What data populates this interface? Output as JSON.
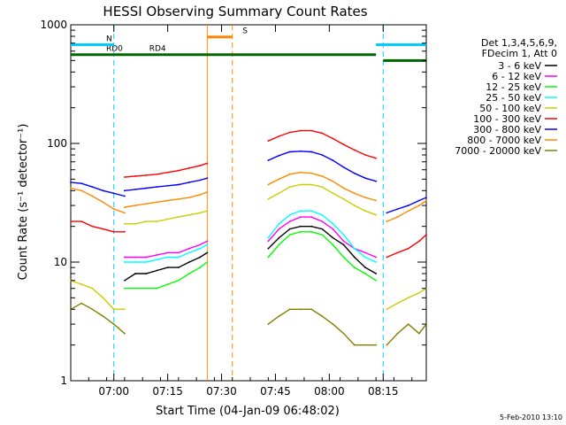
{
  "chart_data": {
    "type": "line",
    "title": "HESSI Observing Summary Count Rates",
    "xlabel": "Start Time (04-Jan-09 06:48:02)",
    "ylabel": "Count Rate (s⁻¹ detector⁻¹)",
    "y_scale": "log",
    "ylim": [
      1,
      1000
    ],
    "xlim_minutes_after_start": [
      0,
      99
    ],
    "x_ticks": [
      {
        "label": "07:00",
        "t": 12
      },
      {
        "label": "07:15",
        "t": 27
      },
      {
        "label": "07:30",
        "t": 42
      },
      {
        "label": "07:45",
        "t": 57
      },
      {
        "label": "08:00",
        "t": 72
      },
      {
        "label": "08:15",
        "t": 87
      }
    ],
    "y_ticks": [
      {
        "label": "1",
        "v": 1
      },
      {
        "label": "10",
        "v": 10
      },
      {
        "label": "100",
        "v": 100
      },
      {
        "label": "1000",
        "v": 1000
      }
    ],
    "legend_header": [
      "Det 1,3,4,5,6,9,",
      "FDecim 1, Att 0"
    ],
    "legend_placement": "right",
    "gaps": [
      [
        38,
        55
      ],
      [
        99,
        99
      ]
    ],
    "series": [
      {
        "name": "3 - 6 keV",
        "color": "#000000",
        "segments": [
          {
            "x": [
              15,
              18,
              21,
              24,
              27,
              30,
              33,
              36,
              38
            ],
            "y": [
              7,
              8,
              8,
              8.5,
              9,
              9,
              10,
              11,
              12
            ]
          },
          {
            "x": [
              55,
              58,
              61,
              64,
              67,
              70,
              73,
              76,
              79,
              82,
              85
            ],
            "y": [
              13,
              16,
              19,
              20,
              20,
              19,
              16,
              14,
              11,
              9,
              8
            ]
          }
        ]
      },
      {
        "name": "6 - 12 keV",
        "color": "#ff00ff",
        "segments": [
          {
            "x": [
              15,
              18,
              21,
              24,
              27,
              30,
              33,
              36,
              38
            ],
            "y": [
              11,
              11,
              11,
              11.5,
              12,
              12,
              13,
              14,
              15
            ]
          },
          {
            "x": [
              55,
              58,
              61,
              64,
              67,
              70,
              73,
              76,
              79,
              82,
              85
            ],
            "y": [
              15,
              19,
              22,
              24,
              24,
              22,
              19,
              15,
              13,
              12,
              11
            ]
          }
        ]
      },
      {
        "name": "12 - 25 keV",
        "color": "#00ff00",
        "segments": [
          {
            "x": [
              15,
              18,
              21,
              24,
              27,
              30,
              33,
              36,
              38
            ],
            "y": [
              6,
              6,
              6,
              6,
              6.5,
              7,
              8,
              9,
              10
            ]
          },
          {
            "x": [
              55,
              58,
              61,
              64,
              67,
              70,
              73,
              76,
              79,
              82,
              85
            ],
            "y": [
              11,
              14,
              17,
              18,
              18,
              17,
              14,
              11,
              9,
              8,
              7
            ]
          }
        ]
      },
      {
        "name": "25 - 50 keV",
        "color": "#00ffff",
        "segments": [
          {
            "x": [
              15,
              18,
              21,
              24,
              27,
              30,
              33,
              36,
              38
            ],
            "y": [
              10,
              10,
              10,
              10.5,
              11,
              11,
              12,
              13,
              14
            ]
          },
          {
            "x": [
              55,
              58,
              61,
              64,
              67,
              70,
              73,
              76,
              79,
              82,
              85
            ],
            "y": [
              16,
              21,
              25,
              27,
              27,
              25,
              21,
              17,
              13,
              11,
              10
            ]
          }
        ]
      },
      {
        "name": "50 - 100 keV",
        "color": "#cccc00",
        "segments": [
          {
            "x": [
              0,
              3,
              6,
              9,
              12,
              15
            ],
            "y": [
              7,
              6.5,
              6,
              5,
              4,
              4
            ]
          },
          {
            "x": [
              15,
              18,
              21,
              24,
              27,
              30,
              33,
              36,
              38
            ],
            "y": [
              21,
              21,
              22,
              22,
              23,
              24,
              25,
              26,
              27
            ]
          },
          {
            "x": [
              55,
              58,
              61,
              64,
              67,
              70,
              73,
              76,
              79,
              82,
              85
            ],
            "y": [
              34,
              38,
              43,
              45,
              45,
              43,
              38,
              34,
              30,
              27,
              25
            ]
          },
          {
            "x": [
              88,
              91,
              94,
              97,
              99
            ],
            "y": [
              4,
              4.5,
              5,
              5.5,
              6
            ]
          }
        ]
      },
      {
        "name": "100 - 300 keV",
        "color": "#ff0000",
        "segments": [
          {
            "x": [
              0,
              3,
              6,
              9,
              12,
              15
            ],
            "y": [
              22,
              22,
              20,
              19,
              18,
              18
            ]
          },
          {
            "x": [
              15,
              18,
              21,
              24,
              27,
              30,
              33,
              36,
              38
            ],
            "y": [
              52,
              53,
              54,
              55,
              57,
              59,
              62,
              65,
              68
            ]
          },
          {
            "x": [
              55,
              58,
              61,
              64,
              67,
              70,
              73,
              76,
              79,
              82,
              85
            ],
            "y": [
              105,
              115,
              124,
              128,
              128,
              122,
              110,
              98,
              88,
              80,
              75
            ]
          },
          {
            "x": [
              88,
              91,
              94,
              97,
              99
            ],
            "y": [
              11,
              12,
              13,
              15,
              17
            ]
          }
        ]
      },
      {
        "name": "300 - 800 keV",
        "color": "#0000ff",
        "segments": [
          {
            "x": [
              0,
              3,
              6,
              9,
              12,
              15
            ],
            "y": [
              47,
              46,
              43,
              40,
              38,
              36
            ]
          },
          {
            "x": [
              15,
              18,
              21,
              24,
              27,
              30,
              33,
              36,
              38
            ],
            "y": [
              40,
              41,
              42,
              43,
              44,
              45,
              47,
              49,
              51
            ]
          },
          {
            "x": [
              55,
              58,
              61,
              64,
              67,
              70,
              73,
              76,
              79,
              82,
              85
            ],
            "y": [
              72,
              79,
              85,
              86,
              85,
              80,
              72,
              63,
              56,
              51,
              48
            ]
          },
          {
            "x": [
              88,
              91,
              94,
              97,
              99
            ],
            "y": [
              26,
              28,
              30,
              33,
              35
            ]
          }
        ]
      },
      {
        "name": "800 - 7000 keV",
        "color": "#ff8800",
        "segments": [
          {
            "x": [
              0,
              3,
              6,
              9,
              12,
              15
            ],
            "y": [
              42,
              40,
              36,
              32,
              28,
              26
            ]
          },
          {
            "x": [
              15,
              18,
              21,
              24,
              27,
              30,
              33,
              36,
              38
            ],
            "y": [
              29,
              30,
              31,
              32,
              33,
              34,
              35,
              37,
              39
            ]
          },
          {
            "x": [
              55,
              58,
              61,
              64,
              67,
              70,
              73,
              76,
              79,
              82,
              85
            ],
            "y": [
              45,
              50,
              55,
              57,
              56,
              53,
              48,
              42,
              38,
              35,
              33
            ]
          },
          {
            "x": [
              88,
              91,
              94,
              97,
              99
            ],
            "y": [
              22,
              24,
              27,
              30,
              33
            ]
          }
        ]
      },
      {
        "name": "7000 - 20000 keV",
        "color": "#808000",
        "segments": [
          {
            "x": [
              0,
              3,
              6,
              9,
              12,
              15
            ],
            "y": [
              4,
              4.5,
              4,
              3.5,
              3,
              2.5
            ]
          },
          {
            "x": [
              55,
              58,
              61,
              64,
              67,
              70,
              73,
              76,
              79,
              82,
              85
            ],
            "y": [
              3,
              3.5,
              4,
              4,
              4,
              3.5,
              3,
              2.5,
              2,
              2,
              2
            ]
          },
          {
            "x": [
              88,
              91,
              94,
              97,
              99
            ],
            "y": [
              2,
              2.5,
              3,
              2.5,
              3
            ]
          }
        ]
      }
    ],
    "annotations": [
      {
        "text": "RD0",
        "color": "#006600",
        "t_start": 0,
        "t_end": 12,
        "level": 560
      },
      {
        "text": "RD4",
        "color": "#006600",
        "t_start": 12,
        "t_end": 85,
        "level": 560
      },
      {
        "text": "",
        "color": "#006600",
        "t_start": 87,
        "t_end": 99,
        "level": 500
      },
      {
        "text": "N",
        "color": "#00ccff",
        "t_start": 0,
        "t_end": 12,
        "level": 680
      },
      {
        "text": "",
        "color": "#00ccff",
        "t_start": 85,
        "t_end": 99,
        "level": 680
      },
      {
        "text": "S",
        "color": "#ff8800",
        "t_start": 38,
        "t_end": 45,
        "level": 790
      }
    ],
    "vertical_markers": [
      {
        "t": 12,
        "color": "#00ccff",
        "style": "dashed"
      },
      {
        "t": 87,
        "color": "#00ccff",
        "style": "dashed"
      },
      {
        "t": 45,
        "color": "#ff8800",
        "style": "dashed"
      },
      {
        "t": 38,
        "color": "#ff8800",
        "style": "solid"
      }
    ]
  },
  "footer_date": "5-Feb-2010 13:10"
}
